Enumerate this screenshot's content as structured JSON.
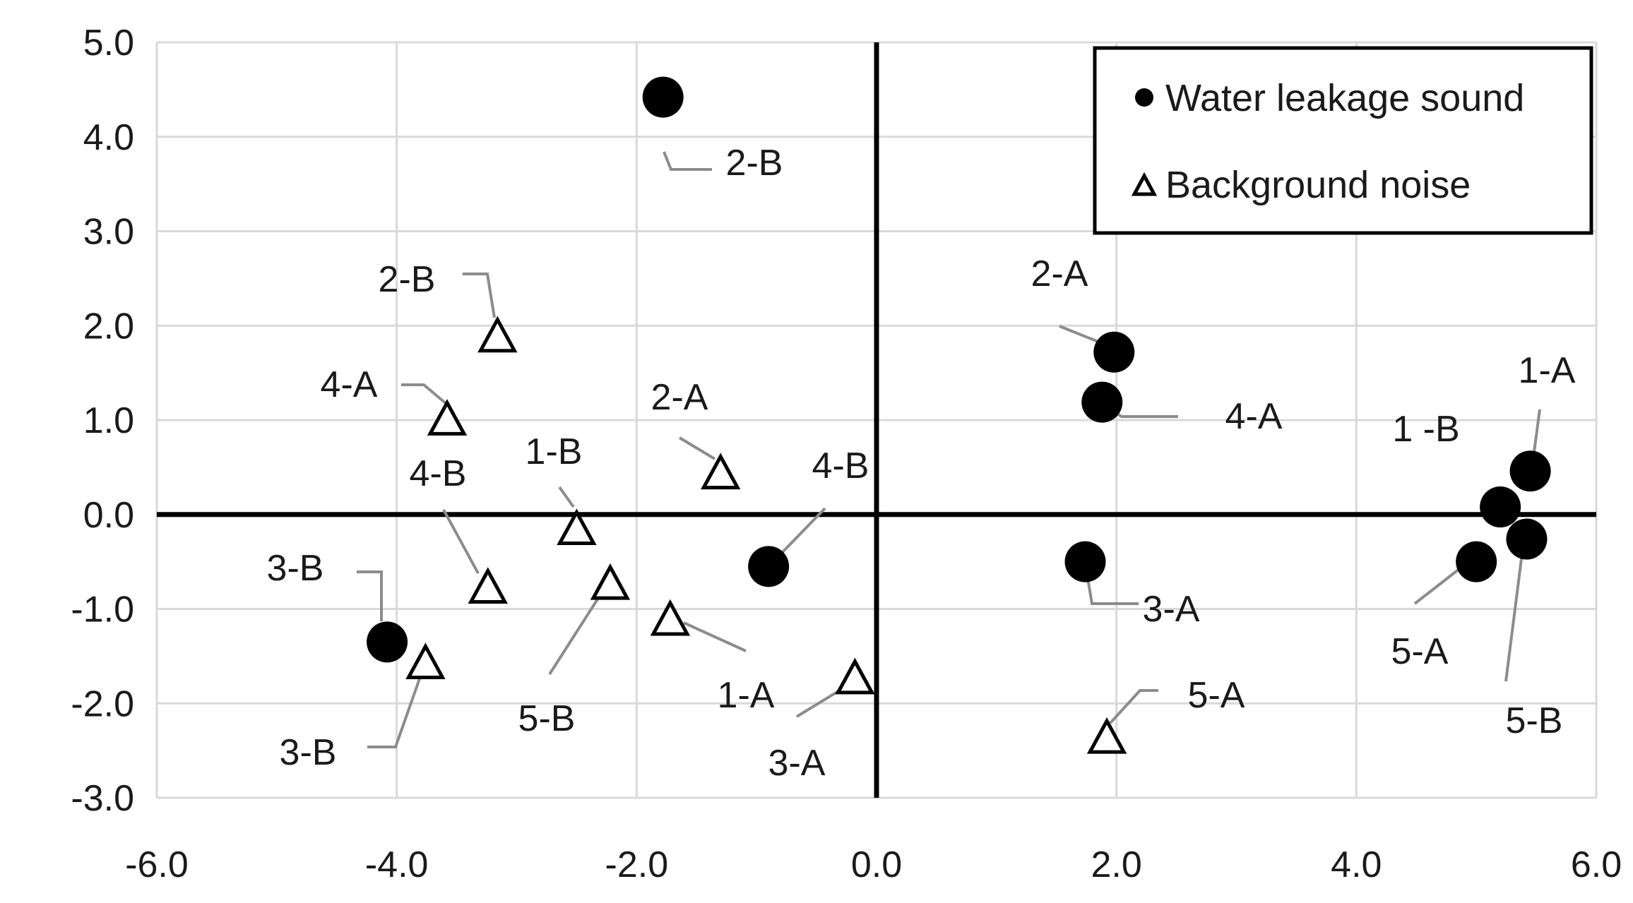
{
  "chart_data": {
    "type": "scatter",
    "title": "",
    "xlabel": "",
    "ylabel": "",
    "xlim": [
      -6.0,
      6.0
    ],
    "ylim": [
      -3.0,
      5.0
    ],
    "xticks": [
      "-6.0",
      "-4.0",
      "-2.0",
      "0.0",
      "2.0",
      "4.0",
      "6.0"
    ],
    "yticks": [
      "5.0",
      "4.0",
      "3.0",
      "2.0",
      "1.0",
      "0.0",
      "-1.0",
      "-2.0",
      "-3.0"
    ],
    "grid": true,
    "legend_position": "top-right",
    "series": [
      {
        "name": "Water leakage sound",
        "marker": "filled-circle",
        "color": "#000000",
        "points": [
          {
            "label": "2-B",
            "x": -1.78,
            "y": 4.42
          },
          {
            "label": "2-A",
            "x": 1.98,
            "y": 1.72
          },
          {
            "label": "4-A",
            "x": 1.88,
            "y": 1.19
          },
          {
            "label": "4-B",
            "x": -0.9,
            "y": -0.55
          },
          {
            "label": "3-A",
            "x": 1.74,
            "y": -0.5
          },
          {
            "label": "3-B",
            "x": -4.08,
            "y": -1.35
          },
          {
            "label": "1-A",
            "x": 5.45,
            "y": 0.46
          },
          {
            "label": "1 -B",
            "x": 5.2,
            "y": 0.08
          },
          {
            "label": "5-B",
            "x": 5.42,
            "y": -0.26
          },
          {
            "label": "5-A",
            "x": 5.0,
            "y": -0.5
          }
        ]
      },
      {
        "name": "Background noise",
        "marker": "open-triangle",
        "color": "#000000",
        "points": [
          {
            "label": "2-B",
            "x": -3.16,
            "y": 1.86
          },
          {
            "label": "4-A",
            "x": -3.58,
            "y": 0.98
          },
          {
            "label": "2-A",
            "x": -1.3,
            "y": 0.41
          },
          {
            "label": "1-B",
            "x": -2.5,
            "y": -0.18
          },
          {
            "label": "4-B",
            "x": -3.24,
            "y": -0.8
          },
          {
            "label": "5-B",
            "x": -2.22,
            "y": -0.76
          },
          {
            "label": "1-A",
            "x": -1.72,
            "y": -1.14
          },
          {
            "label": "3-B",
            "x": -3.76,
            "y": -1.6
          },
          {
            "label": "3-A",
            "x": -0.18,
            "y": -1.76
          },
          {
            "label": "5-A",
            "x": 1.92,
            "y": -2.39
          }
        ]
      }
    ]
  }
}
